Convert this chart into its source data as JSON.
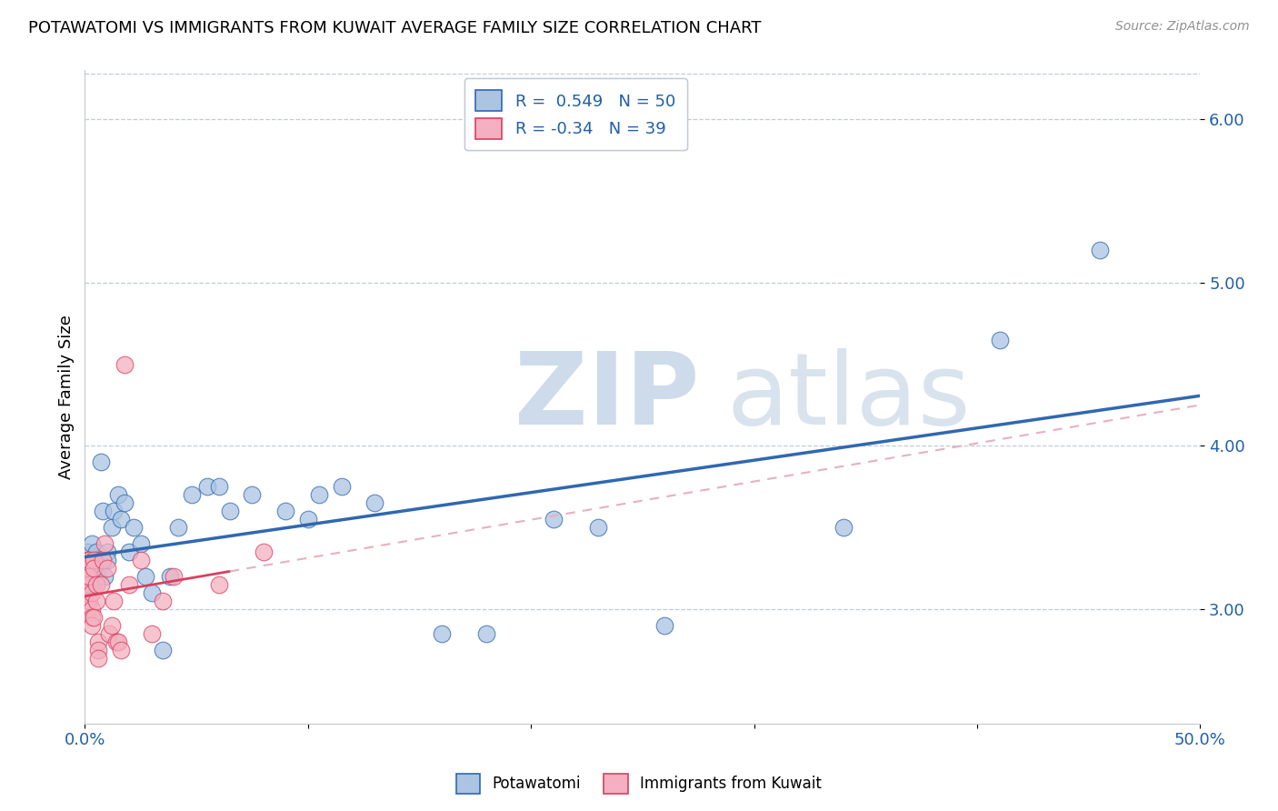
{
  "title": "POTAWATOMI VS IMMIGRANTS FROM KUWAIT AVERAGE FAMILY SIZE CORRELATION CHART",
  "source": "Source: ZipAtlas.com",
  "ylabel": "Average Family Size",
  "xlim": [
    0.0,
    0.5
  ],
  "ylim": [
    2.3,
    6.3
  ],
  "yticks": [
    3.0,
    4.0,
    5.0,
    6.0
  ],
  "yticklabels": [
    "3.00",
    "4.00",
    "5.00",
    "6.00"
  ],
  "xtick_positions": [
    0.0,
    0.1,
    0.2,
    0.3,
    0.4,
    0.5
  ],
  "xticklabels": [
    "0.0%",
    "",
    "",
    "",
    "",
    "50.0%"
  ],
  "potawatomi_R": 0.549,
  "potawatomi_N": 50,
  "kuwait_R": -0.34,
  "kuwait_N": 39,
  "potawatomi_color": "#aac4e2",
  "kuwait_color": "#f4b0c0",
  "trend_blue": "#3068b0",
  "trend_pink": "#d84060",
  "trend_pink_dashed": "#e8b0be",
  "watermark_zip": "ZIP",
  "watermark_atlas": "atlas",
  "potawatomi_x": [
    0.001,
    0.001,
    0.002,
    0.002,
    0.003,
    0.003,
    0.003,
    0.004,
    0.004,
    0.004,
    0.005,
    0.005,
    0.006,
    0.006,
    0.007,
    0.008,
    0.009,
    0.01,
    0.01,
    0.012,
    0.013,
    0.015,
    0.016,
    0.018,
    0.02,
    0.022,
    0.025,
    0.027,
    0.03,
    0.035,
    0.038,
    0.042,
    0.048,
    0.055,
    0.06,
    0.065,
    0.075,
    0.09,
    0.1,
    0.105,
    0.115,
    0.13,
    0.16,
    0.18,
    0.21,
    0.23,
    0.26,
    0.34,
    0.41,
    0.455
  ],
  "potawatomi_y": [
    3.25,
    3.35,
    3.2,
    3.3,
    3.2,
    3.3,
    3.4,
    3.15,
    3.25,
    3.3,
    3.25,
    3.35,
    3.2,
    3.3,
    3.9,
    3.6,
    3.2,
    3.35,
    3.3,
    3.5,
    3.6,
    3.7,
    3.55,
    3.65,
    3.35,
    3.5,
    3.4,
    3.2,
    3.1,
    2.75,
    3.2,
    3.5,
    3.7,
    3.75,
    3.75,
    3.6,
    3.7,
    3.6,
    3.55,
    3.7,
    3.75,
    3.65,
    2.85,
    2.85,
    3.55,
    3.5,
    2.9,
    3.5,
    4.65,
    5.2
  ],
  "kuwait_x": [
    0.001,
    0.001,
    0.001,
    0.001,
    0.002,
    0.002,
    0.002,
    0.002,
    0.002,
    0.003,
    0.003,
    0.003,
    0.003,
    0.004,
    0.004,
    0.004,
    0.005,
    0.005,
    0.006,
    0.006,
    0.006,
    0.007,
    0.008,
    0.009,
    0.01,
    0.011,
    0.012,
    0.013,
    0.014,
    0.015,
    0.016,
    0.018,
    0.02,
    0.025,
    0.03,
    0.035,
    0.04,
    0.06,
    0.08
  ],
  "kuwait_y": [
    3.3,
    3.2,
    3.1,
    3.0,
    3.25,
    3.15,
    3.05,
    3.3,
    3.2,
    3.1,
    3.0,
    2.95,
    2.9,
    3.3,
    3.25,
    2.95,
    3.15,
    3.05,
    2.8,
    2.75,
    2.7,
    3.15,
    3.3,
    3.4,
    3.25,
    2.85,
    2.9,
    3.05,
    2.8,
    2.8,
    2.75,
    4.5,
    3.15,
    3.3,
    2.85,
    3.05,
    3.2,
    3.15,
    3.35
  ],
  "kuwait_trend_x_end": 0.065
}
